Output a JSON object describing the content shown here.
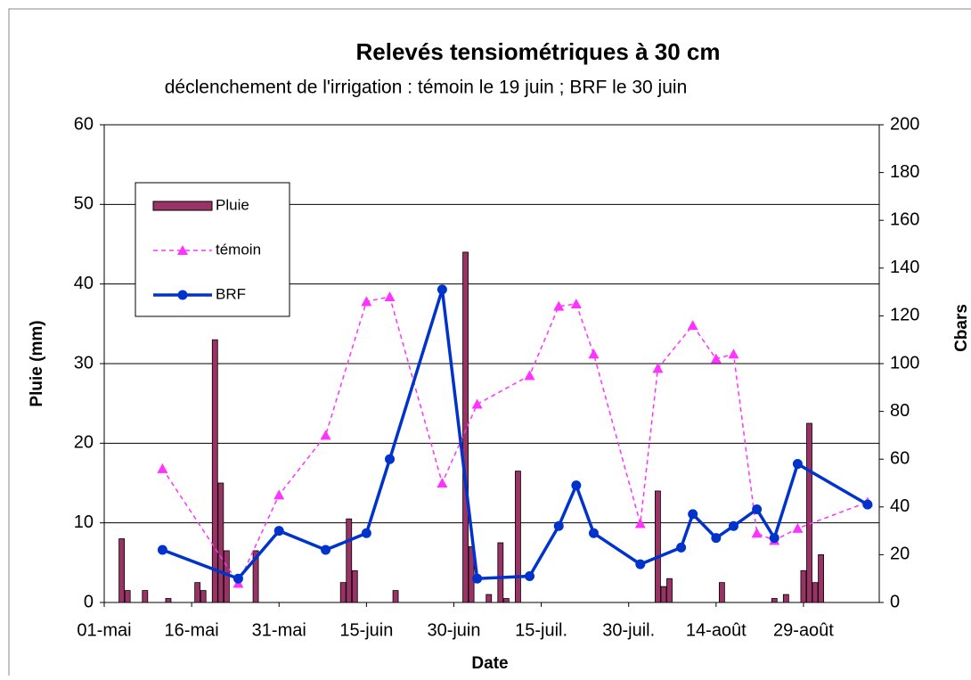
{
  "chart_data": {
    "type": "bar-line",
    "title": "Relevés tensiométriques à 30 cm",
    "subtitle": "déclenchement de l'irrigation : témoin le 19 juin ; BRF le 30 juin",
    "xlabel": "Date",
    "ylabel": "Pluie  (mm)",
    "y2label": "Cbars",
    "xlim": [
      0,
      133
    ],
    "xticks": [
      {
        "value": 0,
        "label": "01-mai"
      },
      {
        "value": 15,
        "label": "16-mai"
      },
      {
        "value": 30,
        "label": "31-mai"
      },
      {
        "value": 45,
        "label": "15-juin"
      },
      {
        "value": 60,
        "label": "30-juin"
      },
      {
        "value": 75,
        "label": "15-juil."
      },
      {
        "value": 90,
        "label": "30-juil."
      },
      {
        "value": 105,
        "label": "14-août"
      },
      {
        "value": 120,
        "label": "29-août"
      }
    ],
    "ylim": [
      0,
      60
    ],
    "yticks": [
      0,
      10,
      20,
      30,
      40,
      50,
      60
    ],
    "y2lim": [
      0,
      200
    ],
    "y2ticks": [
      0,
      20,
      40,
      60,
      80,
      100,
      120,
      140,
      160,
      180,
      200
    ],
    "grid": true,
    "legend": "upper left",
    "series": [
      {
        "name": "Pluie",
        "type": "bar",
        "color": "#993366",
        "x": [
          3,
          4,
          7,
          11,
          16,
          17,
          19,
          20,
          21,
          26,
          41,
          42,
          43,
          50,
          62,
          63,
          66,
          68,
          69,
          71,
          95,
          96,
          97,
          106,
          115,
          117,
          120,
          121,
          122,
          123
        ],
        "values": [
          8,
          1.5,
          1.5,
          0.5,
          2.5,
          1.5,
          33,
          15,
          6.5,
          6.5,
          2.5,
          10.5,
          4,
          1.5,
          44,
          7,
          1,
          7.5,
          0.5,
          16.5,
          14,
          2,
          3,
          2.5,
          0.5,
          1,
          4,
          22.5,
          2.5,
          6
        ]
      },
      {
        "name": "témoin",
        "type": "line",
        "axis": "y2",
        "color": "#ff33ff",
        "marker": "triangle",
        "dashed": true,
        "x": [
          10,
          23,
          30,
          38,
          45,
          49,
          58,
          64,
          73,
          78,
          81,
          84,
          92,
          95,
          101,
          105,
          108,
          112,
          115,
          119,
          131
        ],
        "values": [
          56,
          8,
          45,
          70,
          126,
          128,
          50,
          83,
          95,
          124,
          125,
          104,
          33,
          98,
          116,
          102,
          104,
          29,
          26,
          31,
          42
        ]
      },
      {
        "name": "BRF",
        "type": "line",
        "axis": "y2",
        "color": "#0033cc",
        "marker": "circle",
        "dashed": false,
        "x": [
          10,
          23,
          30,
          38,
          45,
          49,
          58,
          64,
          73,
          78,
          81,
          84,
          92,
          99,
          101,
          105,
          108,
          112,
          115,
          119,
          131
        ],
        "values": [
          22,
          10,
          30,
          22,
          29,
          60,
          131,
          10,
          11,
          32,
          49,
          29,
          16,
          23,
          37,
          27,
          32,
          39,
          27,
          58,
          41
        ]
      }
    ]
  }
}
